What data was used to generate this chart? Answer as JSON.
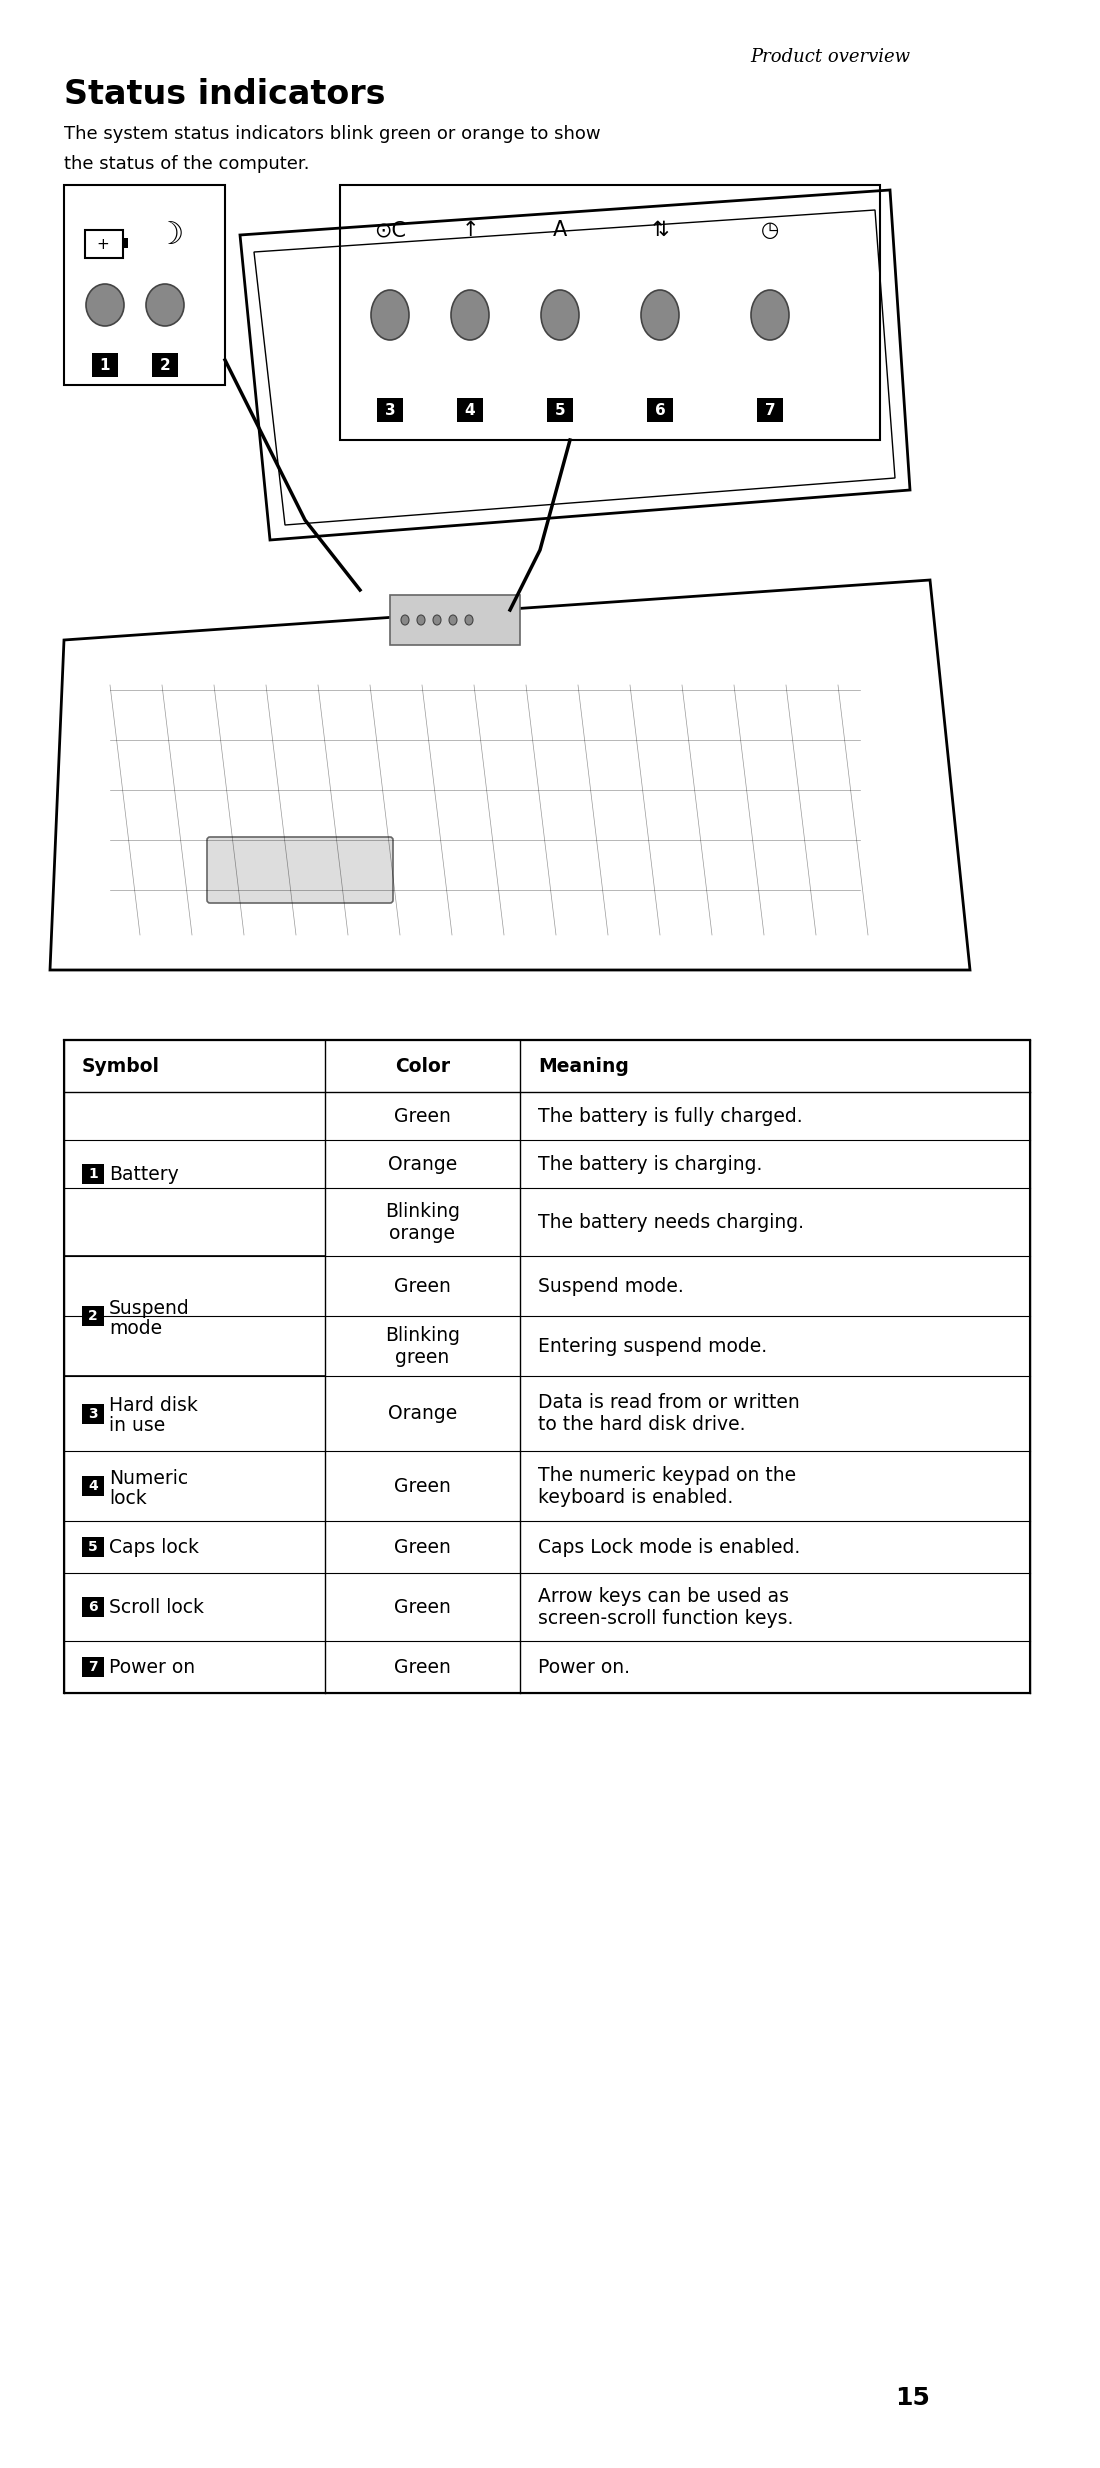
{
  "page_header": "Product overview",
  "title": "Status indicators",
  "intro_line1": "The system status indicators blink green or orange to show",
  "intro_line2": "the status of the computer.",
  "page_number": "15",
  "table_headers": [
    "Symbol",
    "Color",
    "Meaning"
  ],
  "groups": [
    {
      "num": "1",
      "label_line1": "Battery",
      "label_line2": "",
      "rows": [
        {
          "color": "Green",
          "meaning": "The battery is fully charged."
        },
        {
          "color": "Orange",
          "meaning": "The battery is charging."
        },
        {
          "color": "Blinking\norange",
          "meaning": "The battery needs charging."
        }
      ]
    },
    {
      "num": "2",
      "label_line1": "Suspend",
      "label_line2": "mode",
      "rows": [
        {
          "color": "Green",
          "meaning": "Suspend mode."
        },
        {
          "color": "Blinking\ngreen",
          "meaning": "Entering suspend mode."
        }
      ]
    },
    {
      "num": "3",
      "label_line1": "Hard disk",
      "label_line2": "in use",
      "rows": [
        {
          "color": "Orange",
          "meaning": "Data is read from or written\nto the hard disk drive."
        }
      ]
    },
    {
      "num": "4",
      "label_line1": "Numeric",
      "label_line2": "lock",
      "rows": [
        {
          "color": "Green",
          "meaning": "The numeric keypad on the\nkeyboard is enabled."
        }
      ]
    },
    {
      "num": "5",
      "label_line1": "Caps lock",
      "label_line2": "",
      "rows": [
        {
          "color": "Green",
          "meaning": "Caps Lock mode is enabled."
        }
      ]
    },
    {
      "num": "6",
      "label_line1": "Scroll lock",
      "label_line2": "",
      "rows": [
        {
          "color": "Green",
          "meaning": "Arrow keys can be used as\nscreen-scroll function keys."
        }
      ]
    },
    {
      "num": "7",
      "label_line1": "Power on",
      "label_line2": "",
      "rows": [
        {
          "color": "Green",
          "meaning": "Power on."
        }
      ]
    }
  ],
  "bg_color": "#ffffff"
}
